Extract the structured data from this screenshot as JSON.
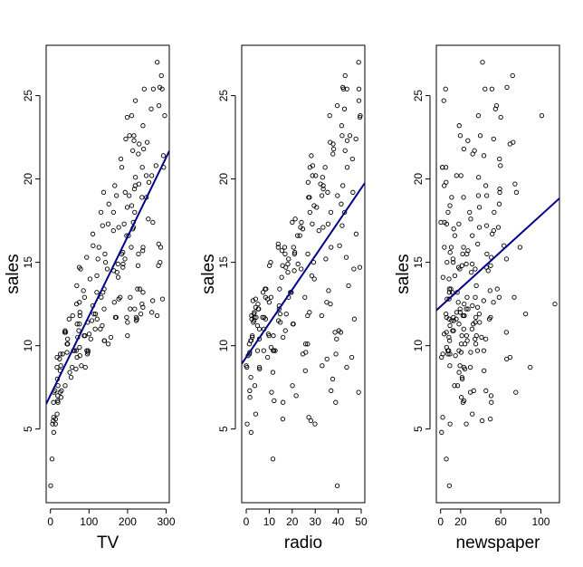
{
  "chart_data": [
    {
      "type": "scatter",
      "xlabel": "TV",
      "ylabel": "sales",
      "xlim": [
        -11.1,
        308.2
      ],
      "ylim": [
        0.58,
        28.02
      ],
      "xticks": [
        0,
        100,
        200,
        300
      ],
      "yticks": [
        5,
        10,
        15,
        20,
        25
      ],
      "color": "#000000",
      "fit": {
        "x": [
          -11.1,
          308.2
        ],
        "y": [
          6.5,
          21.68
        ],
        "color": "#00008b"
      },
      "x": [
        230.1,
        44.5,
        17.2,
        151.5,
        180.8,
        8.7,
        57.5,
        120.2,
        8.6,
        199.8,
        66.1,
        214.7,
        23.8,
        97.5,
        204.1,
        195.4,
        67.8,
        281.4,
        69.2,
        147.3,
        218.4,
        237.4,
        13.2,
        228.3,
        62.3,
        262.9,
        142.9,
        240.1,
        248.8,
        70.6,
        292.9,
        112.9,
        97.2,
        265.6,
        95.7,
        290.7,
        266.9,
        74.7,
        43.1,
        228,
        202.5,
        177,
        293.6,
        206.9,
        25.1,
        175.1,
        89.7,
        239.9,
        227.2,
        66.9,
        199.8,
        100.4,
        216.4,
        182.6,
        262.7,
        198.9,
        7.3,
        136.2,
        210.8,
        210.7,
        53.5,
        261.3,
        239.3,
        102.7,
        131.1,
        69,
        31.5,
        139.3,
        237.4,
        216.8,
        199.1,
        109.8,
        26.8,
        129.4,
        213.4,
        16.9,
        27.5,
        120.5,
        5.4,
        116,
        76.4,
        239.8,
        75.3,
        68.4,
        213.5,
        193.2,
        76.3,
        110.7,
        88.3,
        109.8,
        134.3,
        28.6,
        217.7,
        250.9,
        107.4,
        163.3,
        197.6,
        184.9,
        289.7,
        135.2,
        222.4,
        296.4,
        280.2,
        187.9,
        238.2,
        137.9,
        25,
        90.4,
        13.1,
        255.4,
        225.8,
        241.7,
        175.7,
        209.6,
        78.2,
        75.1,
        139.2,
        76.4,
        125.7,
        19.4,
        141.3,
        18.8,
        224,
        123.1,
        229.5,
        87.2,
        7.8,
        80.2,
        220.3,
        59.6,
        0.7,
        265.2,
        8.4,
        219.8,
        36.9,
        48.3,
        25.6,
        273.7,
        43,
        184.9,
        73.4,
        193.7,
        220.5,
        104.6,
        96.2,
        140.3,
        240.1,
        243.2,
        38,
        44.7,
        280.7,
        121,
        197.6,
        171.3,
        187.8,
        4.1,
        93.9,
        149.8,
        11.7,
        131.7,
        172.5,
        85.7,
        188.4,
        163.5,
        117.2,
        234.5,
        17.9,
        206.8,
        215.4,
        284.3,
        50,
        164.5,
        19.6,
        168.4,
        222.4,
        276.9,
        248.4,
        170.2,
        276.7,
        165.6,
        156.6,
        218.5,
        56.2,
        287.6,
        253.8,
        205,
        139.5,
        191.1,
        286,
        18.7,
        39.5,
        75.5,
        17.2,
        166.8,
        149.7,
        38.2,
        94.2,
        177,
        283.6,
        232.1
      ],
      "y": [
        22.1,
        10.4,
        9.3,
        18.5,
        12.9,
        7.2,
        11.8,
        13.2,
        4.8,
        10.6,
        8.6,
        17.4,
        9.2,
        9.7,
        19,
        22.4,
        12.5,
        24.4,
        11.3,
        14.6,
        18,
        12.5,
        5.6,
        15.5,
        9.7,
        12,
        15,
        15.9,
        18.9,
        10.5,
        21.4,
        11.9,
        9.6,
        17.4,
        9.5,
        12.8,
        25.4,
        14.7,
        10.1,
        21.5,
        16.6,
        17.1,
        20.7,
        12.9,
        8.5,
        14.9,
        10.6,
        23.2,
        14.8,
        9.7,
        11.4,
        10.7,
        22.6,
        21.2,
        20.2,
        23.7,
        5.5,
        13.2,
        23.8,
        18.4,
        8.1,
        24.2,
        15.7,
        14,
        18,
        9.3,
        9.5,
        13.4,
        18.9,
        22.3,
        18.3,
        12.4,
        8.8,
        11,
        17,
        8.7,
        6.9,
        14.2,
        5.3,
        11,
        11.8,
        12.3,
        11.3,
        13.6,
        21.7,
        15.2,
        12,
        16,
        12.9,
        16.7,
        11.2,
        7.3,
        19.4,
        22.2,
        11.5,
        16.9,
        11.7,
        15.5,
        25.4,
        17.2,
        11.7,
        23.8,
        14.8,
        14.7,
        20.7,
        19.2,
        7.2,
        8.7,
        5.3,
        19.8,
        13.4,
        21.8,
        14.1,
        15.9,
        14.6,
        12.6,
        12.2,
        9.4,
        15.9,
        6.6,
        15.5,
        7,
        11.6,
        15.2,
        19.7,
        10.6,
        6.6,
        8.8,
        24.7,
        9.7,
        1.6,
        12.7,
        5.7,
        19.6,
        10.8,
        11.6,
        9.5,
        20.8,
        9.6,
        20.7,
        10.9,
        19.2,
        20.1,
        10.4,
        11.4,
        10.3,
        13.2,
        25.4,
        10.9,
        10.1,
        16.1,
        11.6,
        16.6,
        19,
        15.6,
        3.2,
        15.3,
        10.1,
        7.3,
        12.9,
        14.4,
        13.3,
        14.9,
        18,
        11.9,
        11.9,
        8,
        12.2,
        17.1,
        15,
        8.4,
        14.5,
        7.6,
        11.7,
        11.5,
        27,
        20.2,
        11.7,
        11.8,
        12.6,
        10.5,
        12.2,
        8.7,
        26.2,
        17.6,
        22.6,
        10.3,
        17.3,
        15.9,
        6.7,
        10.8,
        9.9,
        5.9,
        19.6,
        17.3,
        7.6,
        9.7,
        12.8,
        25.5,
        13.4
      ]
    },
    {
      "type": "scatter",
      "xlabel": "radio",
      "ylabel": "sales",
      "xlim": [
        -1.98,
        51.58
      ],
      "ylim": [
        0.58,
        28.02
      ],
      "xticks": [
        0,
        10,
        20,
        30,
        40,
        50
      ],
      "yticks": [
        5,
        10,
        15,
        20,
        25
      ],
      "color": "#000000",
      "fit": {
        "x": [
          -1.98,
          51.58
        ],
        "y": [
          8.91,
          19.76
        ],
        "color": "#00008b"
      },
      "x": [
        37.8,
        39.3,
        45.9,
        41.3,
        10.8,
        48.9,
        32.8,
        19.6,
        2.1,
        2.6,
        5.8,
        24,
        35.1,
        7.6,
        32.9,
        47.7,
        36.6,
        39.6,
        20.5,
        23.9,
        27.7,
        5.1,
        15.9,
        16.9,
        12.6,
        3.5,
        29.3,
        16.7,
        27.1,
        16,
        28.3,
        17.4,
        1.5,
        20,
        1.4,
        4.1,
        43.8,
        49.4,
        26.7,
        37.7,
        22.3,
        33.4,
        27.7,
        8.4,
        25.7,
        22.5,
        9.9,
        41.5,
        15.8,
        11.7,
        3.1,
        9.6,
        41.7,
        46.2,
        28.8,
        49.4,
        28.1,
        19.2,
        49.6,
        29.5,
        2,
        42.7,
        15.5,
        29.6,
        42.8,
        9.3,
        24.6,
        14.5,
        27.5,
        43.9,
        30.6,
        14.3,
        33,
        5.7,
        24.6,
        43.7,
        1.6,
        28.5,
        29.9,
        7.7,
        26.7,
        4.1,
        20.3,
        44.5,
        43,
        18.4,
        27.5,
        40.6,
        25.5,
        47.8,
        4.9,
        1.5,
        33.5,
        36.5,
        14,
        31.6,
        3.5,
        21,
        42.3,
        41.7,
        4.3,
        36.3,
        10.1,
        17.2,
        34.3,
        46.4,
        11,
        0.3,
        0.4,
        26.9,
        8.2,
        38,
        15.4,
        20.6,
        46.8,
        35,
        14.3,
        0.8,
        36.9,
        16,
        26.8,
        21.7,
        2.4,
        34.6,
        32.3,
        11.8,
        38.9,
        0,
        49,
        12,
        39.6,
        2.9,
        27.2,
        33.5,
        38.6,
        47,
        39,
        28.9,
        25.9,
        43.9,
        17,
        35.4,
        33.2,
        5.7,
        14.8,
        1.9,
        7.3,
        49,
        40.3,
        25.8,
        13.9,
        8.4,
        23.3,
        39.7,
        21.1,
        11.6,
        43.5,
        1.3,
        36.9,
        18.4,
        18.1,
        35.8,
        18.1,
        36.8,
        14.7,
        3.4,
        37.6,
        5.2,
        23.6,
        10.6,
        11.6,
        20.9,
        20.1,
        7.1,
        3.4,
        48.9,
        30.2,
        7.8,
        2.3,
        10,
        2.6,
        5.4,
        5.7,
        43,
        21.3,
        45.1,
        2.1,
        28.7,
        13.9,
        12.1,
        41.1,
        10.8,
        4.1,
        42,
        35.6,
        3.7,
        4.9,
        9.3,
        42,
        8.6
      ],
      "y": [
        22.1,
        10.4,
        9.3,
        18.5,
        12.9,
        7.2,
        11.8,
        13.2,
        4.8,
        10.6,
        8.6,
        17.4,
        9.2,
        9.7,
        19,
        22.4,
        12.5,
        24.4,
        11.3,
        14.6,
        18,
        12.5,
        5.6,
        15.5,
        9.7,
        12,
        15,
        15.9,
        18.9,
        10.5,
        21.4,
        11.9,
        9.6,
        17.4,
        9.5,
        12.8,
        25.4,
        14.7,
        10.1,
        21.5,
        16.6,
        17.1,
        20.7,
        12.9,
        8.5,
        14.9,
        10.6,
        23.2,
        14.8,
        9.7,
        11.4,
        10.7,
        22.6,
        21.2,
        20.2,
        23.7,
        5.5,
        13.2,
        23.8,
        18.4,
        8.1,
        24.2,
        15.7,
        14,
        18,
        9.3,
        9.5,
        13.4,
        18.9,
        22.3,
        18.3,
        12.4,
        8.8,
        11,
        17,
        8.7,
        6.9,
        14.2,
        5.3,
        11,
        11.8,
        12.3,
        11.3,
        13.6,
        21.7,
        15.2,
        12,
        16,
        12.9,
        16.7,
        11.2,
        7.3,
        19.4,
        22.2,
        11.5,
        16.9,
        11.7,
        15.5,
        25.4,
        17.2,
        11.7,
        23.8,
        14.8,
        14.7,
        20.7,
        19.2,
        7.2,
        8.7,
        5.3,
        19.8,
        13.4,
        21.8,
        14.1,
        15.9,
        14.6,
        12.6,
        12.2,
        9.4,
        15.9,
        6.6,
        15.5,
        7,
        11.6,
        15.2,
        19.7,
        10.6,
        6.6,
        8.8,
        24.7,
        9.7,
        1.6,
        12.7,
        5.7,
        19.6,
        10.8,
        11.6,
        9.5,
        20.8,
        9.6,
        20.7,
        10.9,
        19.2,
        20.1,
        10.4,
        11.4,
        10.3,
        13.2,
        25.4,
        10.9,
        10.1,
        16.1,
        11.6,
        16.6,
        19,
        15.6,
        3.2,
        15.3,
        10.1,
        7.3,
        12.9,
        14.4,
        13.3,
        14.9,
        18,
        11.9,
        11.9,
        8,
        12.2,
        17.1,
        15,
        8.4,
        14.5,
        7.6,
        11.7,
        11.5,
        27,
        20.2,
        11.7,
        11.8,
        12.6,
        10.5,
        12.2,
        8.7,
        26.2,
        17.6,
        22.6,
        10.3,
        17.3,
        15.9,
        6.7,
        10.8,
        9.9,
        5.9,
        19.6,
        17.3,
        7.6,
        9.7,
        12.8,
        25.5,
        13.4
      ]
    },
    {
      "type": "scatter",
      "xlabel": "newspaper",
      "ylabel": "sales",
      "xlim": [
        -4.25,
        118.55
      ],
      "ylim": [
        0.58,
        28.02
      ],
      "xticks": [
        0,
        20,
        60,
        100
      ],
      "yticks": [
        5,
        10,
        15,
        20,
        25
      ],
      "color": "#000000",
      "fit": {
        "x": [
          -4.25,
          118.55
        ],
        "y": [
          12.12,
          18.84
        ],
        "color": "#00008b"
      },
      "x": [
        69.2,
        45.1,
        69.3,
        58.5,
        58.4,
        75,
        23.5,
        11.6,
        1,
        21.2,
        24.2,
        4,
        65.9,
        7.2,
        46,
        52.9,
        114,
        55.8,
        18.3,
        19.1,
        53.4,
        23.5,
        49.6,
        26.2,
        18.3,
        19.5,
        12.6,
        22.9,
        22.9,
        40.8,
        43.2,
        38.6,
        30,
        0.3,
        7.4,
        8.5,
        5,
        45.7,
        35.1,
        32,
        31.6,
        38.7,
        1.8,
        26.4,
        43.3,
        31.5,
        35.7,
        18.5,
        49.9,
        36.8,
        34.6,
        3.6,
        39.6,
        58.7,
        15.9,
        60,
        41.4,
        16.6,
        37.7,
        9.3,
        21.4,
        54.7,
        27.3,
        8.4,
        28.9,
        0.9,
        2.2,
        10.2,
        11,
        27.2,
        38.7,
        31.7,
        19.3,
        31.3,
        13.1,
        89.4,
        20.7,
        14.2,
        9.4,
        23.1,
        22.3,
        36.9,
        32.5,
        35.6,
        33.8,
        65.7,
        16,
        63.2,
        73.4,
        51.4,
        9.3,
        33,
        59,
        72.3,
        10.9,
        52.9,
        5.9,
        22,
        51.2,
        45.9,
        49.8,
        100.9,
        21.4,
        17.9,
        5.3,
        59,
        29.7,
        23.2,
        25.6,
        5.5,
        56.5,
        23.2,
        2.4,
        10.7,
        34.5,
        52.7,
        25.6,
        14.8,
        79.2,
        22.3,
        46.2,
        50.4,
        15.6,
        12.4,
        74.2,
        25.9,
        50.6,
        9.2,
        3.2,
        43.1,
        8.7,
        43,
        2.1,
        45.1,
        65.6,
        8.5,
        9.3,
        59.7,
        20.5,
        1.7,
        12.9,
        75.6,
        37.9,
        34.4,
        38.9,
        9,
        8.7,
        44.3,
        11.9,
        20.6,
        37,
        48.7,
        14.2,
        37.7,
        9.5,
        5.7,
        50.5,
        24.3,
        45.2,
        34.6,
        30.7,
        49.3,
        25.6,
        7.4,
        5.4,
        84.8,
        21.6,
        19.4,
        57.6,
        6.4,
        18.4,
        47.4,
        17,
        12.8,
        13.1,
        41.8,
        20.3,
        35.2,
        23.7,
        17.6,
        8.3,
        27.4,
        29.7,
        71.8,
        30,
        19.6,
        26.6,
        18.2,
        3.7,
        23.4,
        5.8,
        6,
        31.6,
        3.6,
        6,
        13.8,
        8.1,
        6.4,
        66.2,
        8.7
      ],
      "y": [
        22.1,
        10.4,
        9.3,
        18.5,
        12.9,
        7.2,
        11.8,
        13.2,
        4.8,
        10.6,
        8.6,
        17.4,
        9.2,
        9.7,
        19,
        22.4,
        12.5,
        24.4,
        11.3,
        14.6,
        18,
        12.5,
        5.6,
        15.5,
        9.7,
        12,
        15,
        15.9,
        18.9,
        10.5,
        21.4,
        11.9,
        9.6,
        17.4,
        9.5,
        12.8,
        25.4,
        14.7,
        10.1,
        21.5,
        16.6,
        17.1,
        20.7,
        12.9,
        8.5,
        14.9,
        10.6,
        23.2,
        14.8,
        9.7,
        11.4,
        10.7,
        22.6,
        21.2,
        20.2,
        23.7,
        5.5,
        13.2,
        23.8,
        18.4,
        8.1,
        24.2,
        15.7,
        14,
        18,
        9.3,
        9.5,
        13.4,
        18.9,
        22.3,
        18.3,
        12.4,
        8.8,
        11,
        17,
        8.7,
        6.9,
        14.2,
        5.3,
        11,
        11.8,
        12.3,
        11.3,
        13.6,
        21.7,
        15.2,
        12,
        16,
        12.9,
        16.7,
        11.2,
        7.3,
        19.4,
        22.2,
        11.5,
        16.9,
        11.7,
        15.5,
        25.4,
        17.2,
        11.7,
        23.8,
        14.8,
        14.7,
        20.7,
        19.2,
        7.2,
        8.7,
        5.3,
        19.8,
        13.4,
        21.8,
        14.1,
        15.9,
        14.6,
        12.6,
        12.2,
        9.4,
        15.9,
        6.6,
        15.5,
        7,
        11.6,
        15.2,
        19.7,
        10.6,
        6.6,
        8.8,
        24.7,
        9.7,
        1.6,
        12.7,
        5.7,
        19.6,
        10.8,
        11.6,
        9.5,
        20.8,
        9.6,
        20.7,
        10.9,
        19.2,
        20.1,
        10.4,
        11.4,
        10.3,
        13.2,
        25.4,
        10.9,
        10.1,
        16.1,
        11.6,
        16.6,
        19,
        15.6,
        3.2,
        15.3,
        10.1,
        7.3,
        12.9,
        14.4,
        13.3,
        14.9,
        18,
        11.9,
        11.9,
        8,
        12.2,
        17.1,
        15,
        8.4,
        14.5,
        7.6,
        11.7,
        11.5,
        27,
        20.2,
        11.7,
        11.8,
        12.6,
        10.5,
        12.2,
        8.7,
        26.2,
        17.6,
        22.6,
        10.3,
        17.3,
        15.9,
        6.7,
        10.8,
        9.9,
        5.9,
        19.6,
        17.3,
        7.6,
        9.7,
        12.8,
        25.5,
        13.4
      ]
    }
  ]
}
